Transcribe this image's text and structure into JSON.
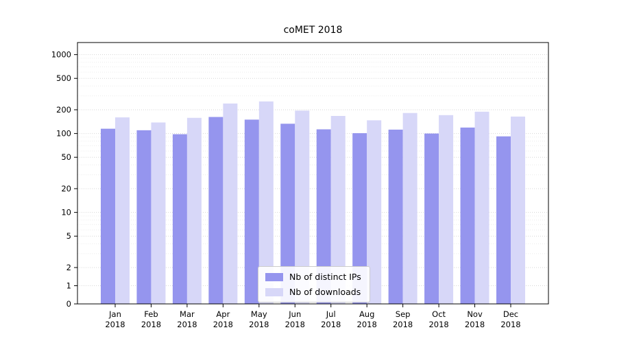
{
  "chart_data": {
    "type": "bar",
    "title": "coMET 2018",
    "yscale": "symlog",
    "grid": true,
    "legend_position": "lower center",
    "y_ticks": [
      0,
      1,
      2,
      5,
      10,
      20,
      50,
      100,
      200,
      500,
      1000
    ],
    "ylim": [
      0,
      1200
    ],
    "categories": [
      {
        "top": "Jan",
        "bottom": "2018"
      },
      {
        "top": "Feb",
        "bottom": "2018"
      },
      {
        "top": "Mar",
        "bottom": "2018"
      },
      {
        "top": "Apr",
        "bottom": "2018"
      },
      {
        "top": "May",
        "bottom": "2018"
      },
      {
        "top": "Jun",
        "bottom": "2018"
      },
      {
        "top": "Jul",
        "bottom": "2018"
      },
      {
        "top": "Aug",
        "bottom": "2018"
      },
      {
        "top": "Sep",
        "bottom": "2018"
      },
      {
        "top": "Oct",
        "bottom": "2018"
      },
      {
        "top": "Nov",
        "bottom": "2018"
      },
      {
        "top": "Dec",
        "bottom": "2018"
      }
    ],
    "series": [
      {
        "name": "Nb of distinct IPs",
        "color": "#9595ee",
        "values": [
          115,
          110,
          98,
          162,
          150,
          133,
          113,
          101,
          112,
          100,
          119,
          92
        ]
      },
      {
        "name": "Nb of downloads",
        "color": "#d7d7f8",
        "values": [
          160,
          138,
          158,
          240,
          255,
          195,
          167,
          147,
          182,
          171,
          189,
          164
        ]
      }
    ],
    "colors": {
      "major_grid": "#d5d5d5",
      "minor_grid": "#ebebeb",
      "axis": "#000000"
    }
  }
}
